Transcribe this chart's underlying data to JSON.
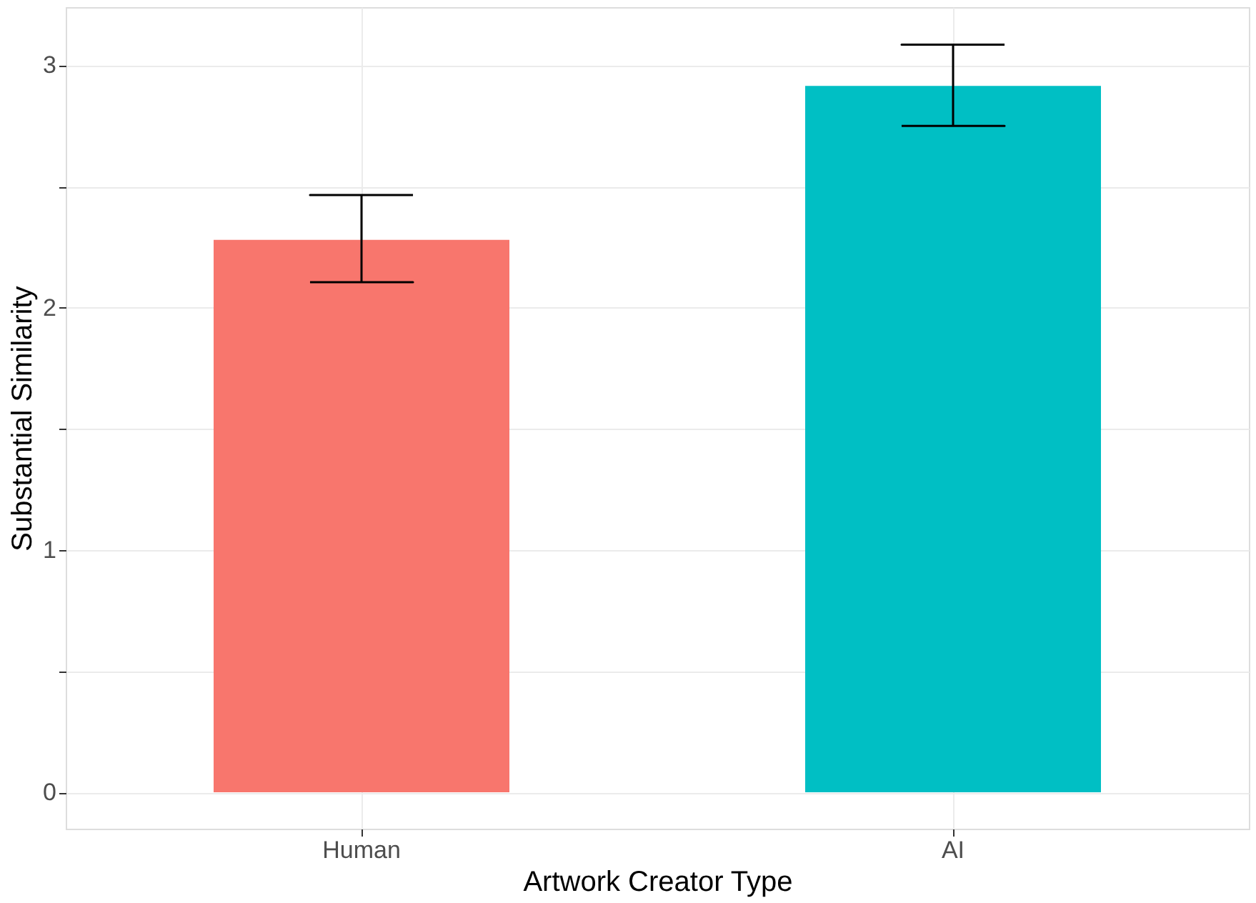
{
  "chart_data": {
    "type": "bar",
    "xlabel": "Artwork Creator Type",
    "ylabel": "Substantial Similarity",
    "categories": [
      "Human",
      "AI"
    ],
    "values": [
      2.28,
      2.915
    ],
    "colors": [
      "#f8766d",
      "#00bfc4"
    ],
    "errors": [
      [
        2.105,
        2.465
      ],
      [
        2.75,
        3.085
      ]
    ],
    "ylim": [
      -0.15,
      3.24
    ],
    "yticks": [
      0,
      {
        "value": 0.5,
        "label": null
      },
      1,
      {
        "value": 1.5,
        "label": null
      },
      2,
      {
        "value": 2.5,
        "label": null
      },
      3
    ],
    "grid": true,
    "legend": false
  }
}
